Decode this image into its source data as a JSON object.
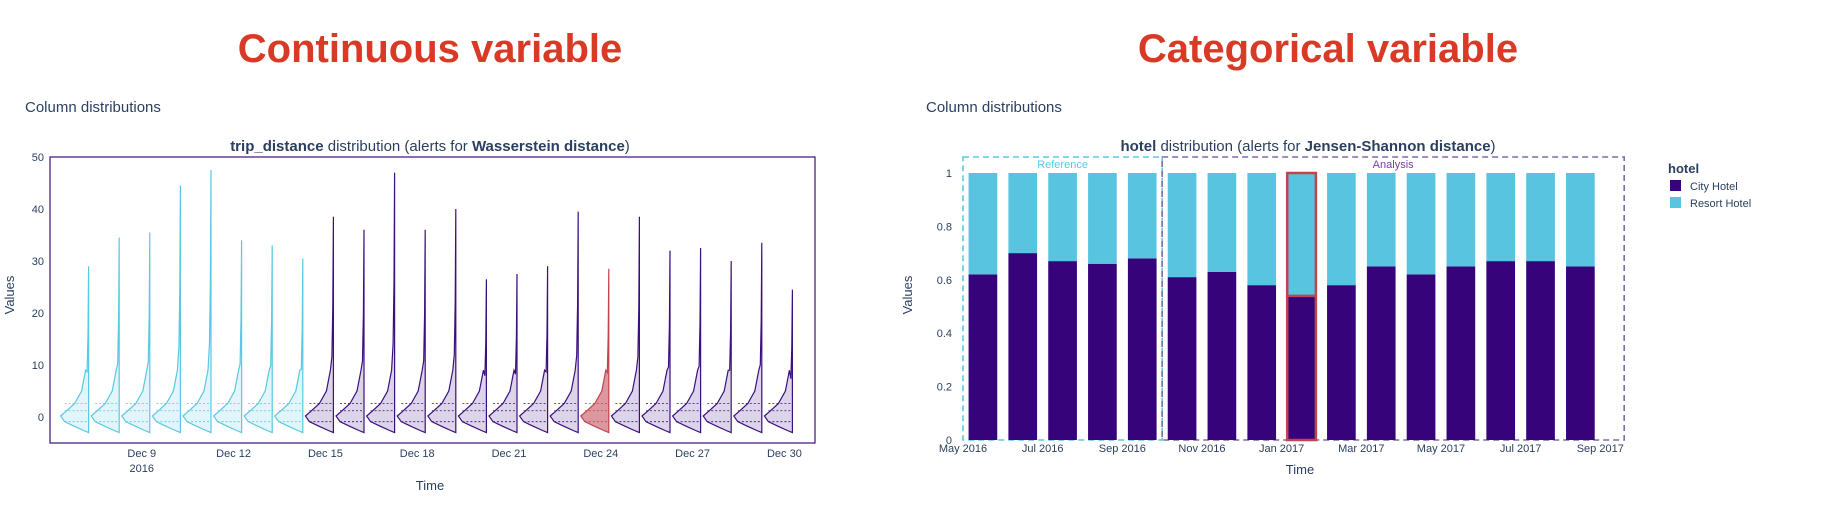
{
  "headings": {
    "left": "Continuous variable",
    "right": "Categorical variable"
  },
  "colors": {
    "heading": "#d93a26",
    "reference": "#5ac8e2",
    "analysis": "#3b0f7e",
    "alert": "#c0444f",
    "city_hotel": "#36037a",
    "resort_hotel": "#58c4e0"
  },
  "chart_data": [
    {
      "type": "violin",
      "section_label": "Column distributions",
      "title_bold_1": "trip_distance",
      "title_mid": " distribution (alerts for ",
      "title_bold_2": "Wasserstein distance",
      "title_end": ")",
      "xlabel": "Time",
      "ylabel": "Values",
      "ylim": [
        -5,
        50
      ],
      "yticks": [
        0,
        10,
        20,
        30,
        40,
        50
      ],
      "xlim": [
        "2016-12-06",
        "2016-12-31"
      ],
      "xticks": [
        {
          "date": "2016-12-09",
          "label": "Dec 9",
          "sub": "2016"
        },
        {
          "date": "2016-12-12",
          "label": "Dec 12",
          "sub": ""
        },
        {
          "date": "2016-12-15",
          "label": "Dec 15",
          "sub": ""
        },
        {
          "date": "2016-12-18",
          "label": "Dec 18",
          "sub": ""
        },
        {
          "date": "2016-12-21",
          "label": "Dec 21",
          "sub": ""
        },
        {
          "date": "2016-12-24",
          "label": "Dec 24",
          "sub": ""
        },
        {
          "date": "2016-12-27",
          "label": "Dec 27",
          "sub": ""
        },
        {
          "date": "2016-12-30",
          "label": "Dec 30",
          "sub": ""
        }
      ],
      "periods": [
        {
          "date": "2016-12-07",
          "max": 29,
          "period": "reference",
          "alert": false
        },
        {
          "date": "2016-12-08",
          "max": 34.5,
          "period": "reference",
          "alert": false
        },
        {
          "date": "2016-12-09",
          "max": 35.5,
          "period": "reference",
          "alert": false
        },
        {
          "date": "2016-12-10",
          "max": 44.5,
          "period": "reference",
          "alert": false
        },
        {
          "date": "2016-12-11",
          "max": 47.5,
          "period": "reference",
          "alert": false
        },
        {
          "date": "2016-12-12",
          "max": 34,
          "period": "reference",
          "alert": false
        },
        {
          "date": "2016-12-13",
          "max": 33,
          "period": "reference",
          "alert": false
        },
        {
          "date": "2016-12-14",
          "max": 30.5,
          "period": "reference",
          "alert": false
        },
        {
          "date": "2016-12-15",
          "max": 38.5,
          "period": "analysis",
          "alert": false
        },
        {
          "date": "2016-12-16",
          "max": 36,
          "period": "analysis",
          "alert": false
        },
        {
          "date": "2016-12-17",
          "max": 47,
          "period": "analysis",
          "alert": false
        },
        {
          "date": "2016-12-18",
          "max": 36,
          "period": "analysis",
          "alert": false
        },
        {
          "date": "2016-12-19",
          "max": 40,
          "period": "analysis",
          "alert": false
        },
        {
          "date": "2016-12-20",
          "max": 26.5,
          "period": "analysis",
          "alert": false
        },
        {
          "date": "2016-12-21",
          "max": 27.5,
          "period": "analysis",
          "alert": false
        },
        {
          "date": "2016-12-22",
          "max": 29,
          "period": "analysis",
          "alert": false
        },
        {
          "date": "2016-12-23",
          "max": 39.5,
          "period": "analysis",
          "alert": false
        },
        {
          "date": "2016-12-24",
          "max": 28.5,
          "period": "analysis",
          "alert": true
        },
        {
          "date": "2016-12-25",
          "max": 38.5,
          "period": "analysis",
          "alert": false
        },
        {
          "date": "2016-12-26",
          "max": 32,
          "period": "analysis",
          "alert": false
        },
        {
          "date": "2016-12-27",
          "max": 32.5,
          "period": "analysis",
          "alert": false
        },
        {
          "date": "2016-12-28",
          "max": 30,
          "period": "analysis",
          "alert": false
        },
        {
          "date": "2016-12-29",
          "max": 33.5,
          "period": "analysis",
          "alert": false
        },
        {
          "date": "2016-12-30",
          "max": 24.5,
          "period": "analysis",
          "alert": false
        }
      ]
    },
    {
      "type": "bar",
      "stacked": true,
      "section_label": "Column distributions",
      "title_bold_1": "hotel",
      "title_mid": " distribution (alerts for ",
      "title_bold_2": "Jensen-Shannon distance",
      "title_end": ")",
      "xlabel": "Time",
      "ylabel": "Values",
      "ylim": [
        0,
        1.05
      ],
      "yticks": [
        0,
        0.2,
        0.4,
        0.6,
        0.8,
        1
      ],
      "xticklabels": [
        "May 2016",
        "Jul 2016",
        "Sep 2016",
        "Nov 2016",
        "Jan 2017",
        "Mar 2017",
        "May 2017",
        "Jul 2017",
        "Sep 2017"
      ],
      "legend": {
        "title": "hotel",
        "entries": [
          "City Hotel",
          "Resort Hotel"
        ],
        "position": "top-right"
      },
      "reference_label": "Reference",
      "analysis_label": "Analysis",
      "categories": [
        "May 2016",
        "Jun 2016",
        "Jul 2016",
        "Aug 2016",
        "Sep 2016",
        "Oct 2016",
        "Nov 2016",
        "Dec 2016",
        "Jan 2017",
        "Feb 2017",
        "Mar 2017",
        "Apr 2017",
        "May 2017",
        "Jun 2017",
        "Jul 2017",
        "Aug 2017"
      ],
      "series": [
        {
          "name": "City Hotel",
          "values": [
            0.62,
            0.7,
            0.67,
            0.66,
            0.68,
            0.61,
            0.63,
            0.58,
            0.54,
            0.58,
            0.65,
            0.62,
            0.65,
            0.67,
            0.67,
            0.65
          ]
        },
        {
          "name": "Resort Hotel",
          "values": [
            0.38,
            0.3,
            0.33,
            0.34,
            0.32,
            0.39,
            0.37,
            0.42,
            0.46,
            0.42,
            0.35,
            0.38,
            0.35,
            0.33,
            0.33,
            0.35
          ]
        }
      ],
      "periods": [
        "reference",
        "reference",
        "reference",
        "reference",
        "reference",
        "analysis",
        "analysis",
        "analysis",
        "analysis",
        "analysis",
        "analysis",
        "analysis",
        "analysis",
        "analysis",
        "analysis",
        "analysis"
      ],
      "alert": [
        false,
        false,
        false,
        false,
        false,
        false,
        false,
        false,
        true,
        false,
        false,
        false,
        false,
        false,
        false,
        false
      ]
    }
  ]
}
